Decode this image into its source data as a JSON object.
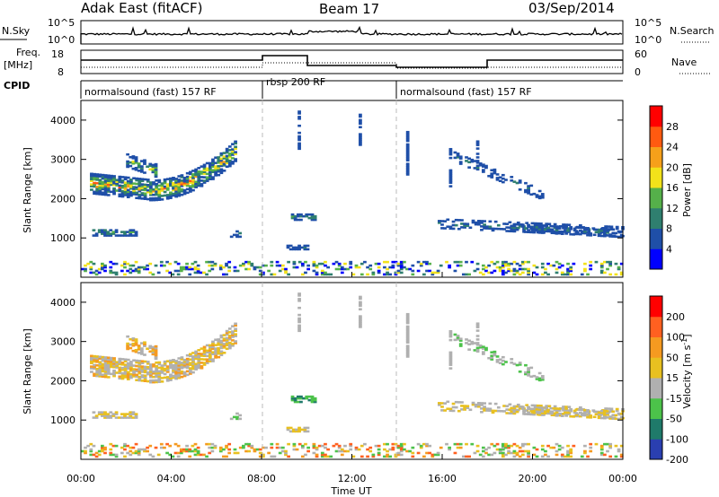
{
  "header": {
    "station": "Adak East (fitACF)",
    "beam": "Beam 17",
    "date": "03/Sep/2014"
  },
  "strip": {
    "nsky_label": "N.Sky",
    "nsearch_label": "N.Search",
    "nsky_ticks": [
      "10^5",
      "10^0"
    ],
    "freq_label": "Freq.",
    "freq_unit": "[MHz]",
    "freq_ticks": [
      "18",
      "8"
    ],
    "nave_label": "Nave",
    "nave_ticks": [
      "60",
      "0"
    ],
    "cpid_label": "CPID",
    "cpid_segments": [
      {
        "label": "normalsound (fast) 157 RF",
        "start": 0,
        "end": 8
      },
      {
        "label": "rbsp 200 RF",
        "start": 8,
        "end": 14
      },
      {
        "label": "normalsound (fast) 157 RF",
        "start": 14,
        "end": 24
      }
    ]
  },
  "chart_data": [
    {
      "type": "heatmap",
      "title": "",
      "xlabel": "",
      "ylabel": "Slant Range [km]",
      "xlim": [
        0,
        24
      ],
      "ylim": [
        0,
        4500
      ],
      "yticks": [
        "1000",
        "2000",
        "3000",
        "4000"
      ],
      "colorbar": {
        "label": "Power [dB]",
        "ticks": [
          "4",
          "8",
          "12",
          "16",
          "20",
          "24",
          "28"
        ],
        "colors": [
          "#0000ff",
          "#1f4fa8",
          "#2f7f6f",
          "#55b04a",
          "#f2e21a",
          "#f6a01a",
          "#ff5a10",
          "#ff0000"
        ]
      }
    },
    {
      "type": "heatmap",
      "title": "",
      "xlabel": "Time UT",
      "ylabel": "Slant Range [km]",
      "xlim": [
        0,
        24
      ],
      "ylim": [
        0,
        4500
      ],
      "yticks": [
        "1000",
        "2000",
        "3000",
        "4000"
      ],
      "xticks": [
        "00:00",
        "04:00",
        "08:00",
        "12:00",
        "16:00",
        "20:00",
        "00:00"
      ],
      "colorbar": {
        "label": "Velocity [m s^-1]",
        "ticks": [
          "200",
          "100",
          "50",
          "15",
          "-15",
          "-50",
          "-100",
          "-200"
        ],
        "colors": [
          "#2a3fb0",
          "#1f7a6a",
          "#4cc24a",
          "#b0b0b0",
          "#e8c020",
          "#f59a20",
          "#ff6020",
          "#ff0000"
        ]
      }
    }
  ]
}
